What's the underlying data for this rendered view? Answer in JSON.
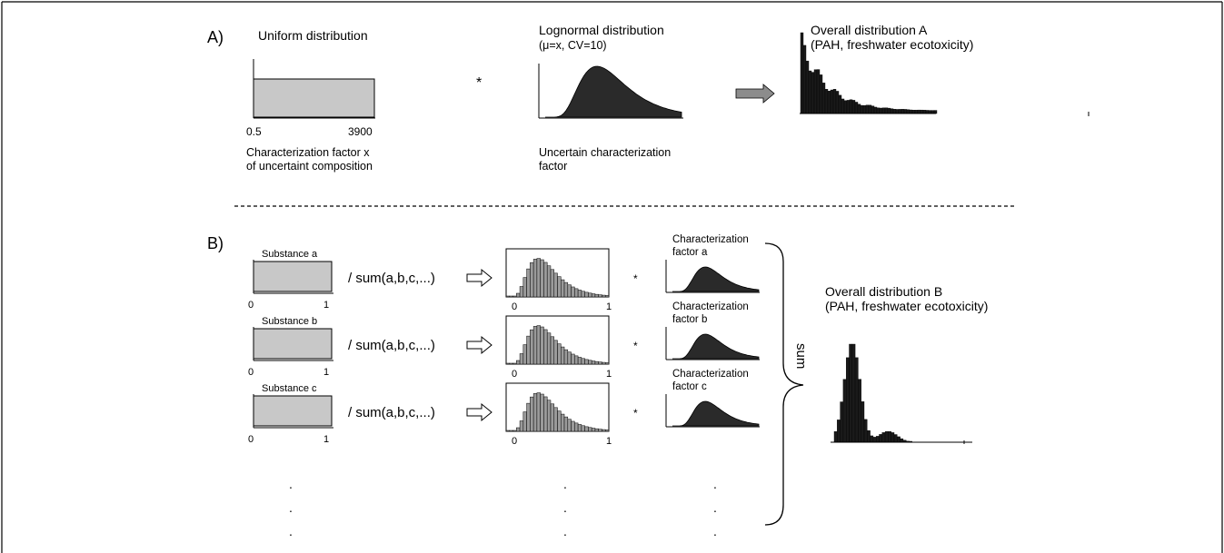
{
  "colors": {
    "box_fill": "#c8c8c8",
    "dark_fill": "#2a2a2a",
    "arrow_fill": "#8c8c8c",
    "line": "#000000"
  },
  "section_a": {
    "label": "A)",
    "uniform_title": "Uniform distribution",
    "uniform_min": "0.5",
    "uniform_max": "3900",
    "uniform_caption_1": "Characterization factor x",
    "uniform_caption_2": "of uncertaint composition",
    "multiply": "*",
    "lognormal_title_1": "Lognormal distribution",
    "lognormal_title_2": "(μ=x, CV=10)",
    "lognormal_caption_1": "Uncertain characterization",
    "lognormal_caption_2": "factor",
    "overall_title_1": "Overall distribution A",
    "overall_title_2": "(PAH, freshwater ecotoxicity)"
  },
  "section_b": {
    "label": "B)",
    "rows": [
      {
        "substance": "Substance a",
        "min": "0",
        "max": "1",
        "op": "/ sum(a,b,c,...)",
        "hist_min": "0",
        "hist_max": "1",
        "multiply": "*",
        "cf_1": "Characterization",
        "cf_2": "factor a"
      },
      {
        "substance": "Substance b",
        "min": "0",
        "max": "1",
        "op": "/ sum(a,b,c,...)",
        "hist_min": "0",
        "hist_max": "1",
        "multiply": "*",
        "cf_1": "Characterization",
        "cf_2": "factor b"
      },
      {
        "substance": "Substance c",
        "min": "0",
        "max": "1",
        "op": "/ sum(a,b,c,...)",
        "hist_min": "0",
        "hist_max": "1",
        "multiply": "*",
        "cf_1": "Characterization",
        "cf_2": "factor c"
      }
    ],
    "ellipsis": ".",
    "sum_label": "sum",
    "overall_title_1": "Overall distribution B",
    "overall_title_2": "(PAH, freshwater ecotoxicity)"
  }
}
